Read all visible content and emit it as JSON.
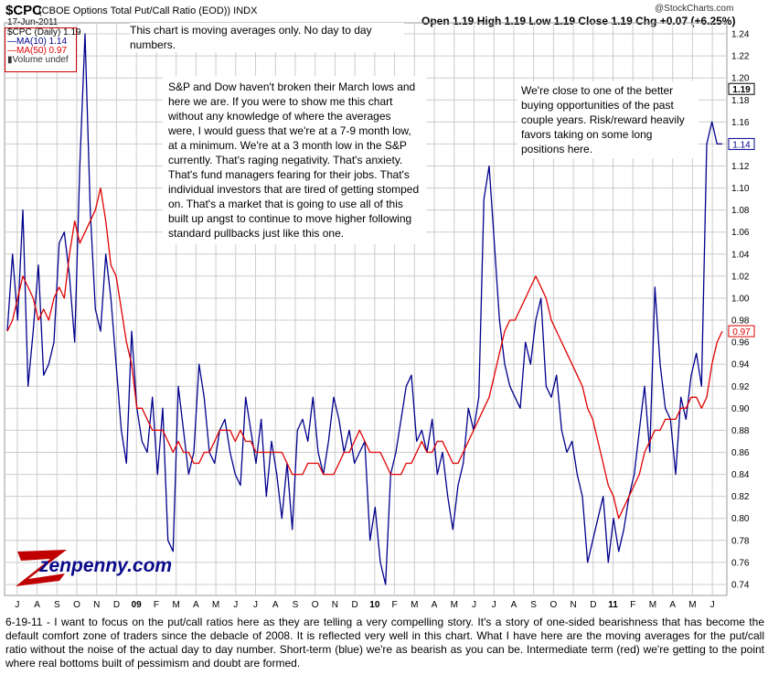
{
  "header": {
    "symbol": "$CPC",
    "name": "(CBOE Options Total Put/Call Ratio (EOD)) INDX",
    "date": "17-Jun-2011",
    "quote": "Open 1.19 High 1.19 Low 1.19 Close 1.19 Chg +0.07 (+6.25%)",
    "watermark": "@StockCharts.com"
  },
  "legend": {
    "main": "$CPC (Daily) 1.19",
    "ma10": "MA(10) 1.14",
    "ma50": "MA(50) 0.97",
    "volume": "Volume undef"
  },
  "annotations": {
    "top": "This chart is moving averages only. No day to day numbers.",
    "main": "S&P and Dow haven't broken their March lows and here we are. If you were to show me this chart without any knowledge of where the averages were, I would guess that we're at a 7-9 month low, at a minimum. We're at a 3 month low in the S&P currently. That's raging negativity. That's anxiety. That's fund managers fearing for their jobs. That's individual investors that are tired of getting stomped on. That's a market that is going to use all of this built up angst to continue to move higher following standard pullbacks just like this one.",
    "right": "We're close to one of the better buying opportunities of the past couple years. Risk/reward heavily favors taking on some long positions here."
  },
  "logo": {
    "text": "zenpenny.com"
  },
  "caption": "6-19-11 - I want to focus on the put/call ratios here as they are telling a very compelling story. It's a story of one-sided bearishness that has become the default comfort zone of traders since the debacle of 2008. It is reflected very well in this chart. What I have here are the moving averages for the put/call ratio without the noise of the actual day to day number. Short-term (blue) we're as bearish as you can be. Intermediate term (red) we're getting to the point where real bottoms built of pessimism and doubt are formed.",
  "colors": {
    "ma10": "#00008b",
    "ma50": "#e00000",
    "grid": "#cccccc"
  },
  "chart_data": {
    "type": "line",
    "ylim": [
      0.73,
      1.25
    ],
    "y_ticks": [
      0.74,
      0.76,
      0.78,
      0.8,
      0.82,
      0.84,
      0.86,
      0.88,
      0.9,
      0.92,
      0.94,
      0.96,
      0.98,
      1.0,
      1.02,
      1.04,
      1.06,
      1.08,
      1.1,
      1.12,
      1.14,
      1.16,
      1.18,
      1.2,
      1.22,
      1.24
    ],
    "x_ticks": [
      "J",
      "A",
      "S",
      "O",
      "N",
      "D",
      "09",
      "F",
      "M",
      "A",
      "M",
      "J",
      "J",
      "A",
      "S",
      "O",
      "N",
      "D",
      "10",
      "F",
      "M",
      "A",
      "M",
      "J",
      "J",
      "A",
      "S",
      "O",
      "N",
      "D",
      "11",
      "F",
      "M",
      "A",
      "M",
      "J"
    ],
    "price_labels": [
      {
        "value": 1.19,
        "text": "1.19",
        "color": "#000000",
        "bold": true
      },
      {
        "value": 1.14,
        "text": "1.14",
        "color": "#00008b",
        "bold": false
      },
      {
        "value": 0.97,
        "text": "0.97",
        "color": "#e00000",
        "bold": false
      }
    ],
    "series": [
      {
        "name": "MA(10)",
        "color": "#00008b",
        "values": [
          0.97,
          1.04,
          0.98,
          1.08,
          0.92,
          0.97,
          1.03,
          0.93,
          0.94,
          0.96,
          1.05,
          1.06,
          1.02,
          0.96,
          1.12,
          1.24,
          1.08,
          0.99,
          0.97,
          1.04,
          1.0,
          0.94,
          0.88,
          0.85,
          0.97,
          0.9,
          0.87,
          0.86,
          0.91,
          0.84,
          0.9,
          0.78,
          0.77,
          0.92,
          0.88,
          0.84,
          0.86,
          0.94,
          0.91,
          0.86,
          0.85,
          0.88,
          0.89,
          0.86,
          0.84,
          0.83,
          0.91,
          0.88,
          0.85,
          0.89,
          0.82,
          0.87,
          0.84,
          0.8,
          0.85,
          0.79,
          0.88,
          0.89,
          0.87,
          0.91,
          0.86,
          0.84,
          0.87,
          0.91,
          0.89,
          0.86,
          0.88,
          0.85,
          0.86,
          0.87,
          0.78,
          0.81,
          0.76,
          0.74,
          0.84,
          0.86,
          0.89,
          0.92,
          0.93,
          0.87,
          0.88,
          0.86,
          0.89,
          0.84,
          0.86,
          0.82,
          0.79,
          0.83,
          0.85,
          0.9,
          0.88,
          0.91,
          1.09,
          1.12,
          1.05,
          0.98,
          0.94,
          0.92,
          0.91,
          0.9,
          0.96,
          0.94,
          0.98,
          1.0,
          0.92,
          0.91,
          0.93,
          0.88,
          0.86,
          0.87,
          0.84,
          0.82,
          0.76,
          0.78,
          0.8,
          0.82,
          0.76,
          0.8,
          0.77,
          0.79,
          0.82,
          0.84,
          0.88,
          0.92,
          0.86,
          1.01,
          0.94,
          0.9,
          0.89,
          0.84,
          0.91,
          0.89,
          0.93,
          0.95,
          0.92,
          1.14,
          1.16,
          1.14,
          1.14
        ]
      },
      {
        "name": "MA(50)",
        "color": "#e00000",
        "values": [
          0.97,
          0.98,
          1.0,
          1.02,
          1.01,
          1.0,
          0.98,
          0.99,
          0.98,
          1.0,
          1.01,
          1.0,
          1.04,
          1.07,
          1.05,
          1.06,
          1.07,
          1.08,
          1.1,
          1.07,
          1.03,
          1.02,
          0.99,
          0.96,
          0.94,
          0.9,
          0.9,
          0.89,
          0.88,
          0.88,
          0.88,
          0.87,
          0.86,
          0.87,
          0.86,
          0.86,
          0.85,
          0.85,
          0.86,
          0.86,
          0.87,
          0.88,
          0.88,
          0.88,
          0.87,
          0.88,
          0.87,
          0.87,
          0.86,
          0.86,
          0.86,
          0.86,
          0.86,
          0.86,
          0.85,
          0.84,
          0.84,
          0.84,
          0.85,
          0.85,
          0.85,
          0.84,
          0.84,
          0.84,
          0.85,
          0.86,
          0.86,
          0.87,
          0.88,
          0.87,
          0.86,
          0.86,
          0.86,
          0.85,
          0.84,
          0.84,
          0.84,
          0.85,
          0.85,
          0.86,
          0.87,
          0.86,
          0.86,
          0.87,
          0.87,
          0.86,
          0.85,
          0.85,
          0.86,
          0.87,
          0.88,
          0.89,
          0.9,
          0.91,
          0.93,
          0.95,
          0.97,
          0.98,
          0.98,
          0.99,
          1.0,
          1.01,
          1.02,
          1.01,
          1.0,
          0.98,
          0.97,
          0.96,
          0.95,
          0.94,
          0.93,
          0.92,
          0.9,
          0.89,
          0.87,
          0.85,
          0.83,
          0.82,
          0.8,
          0.81,
          0.82,
          0.83,
          0.84,
          0.86,
          0.87,
          0.88,
          0.88,
          0.89,
          0.89,
          0.89,
          0.9,
          0.9,
          0.91,
          0.91,
          0.9,
          0.91,
          0.94,
          0.96,
          0.97
        ]
      }
    ]
  }
}
